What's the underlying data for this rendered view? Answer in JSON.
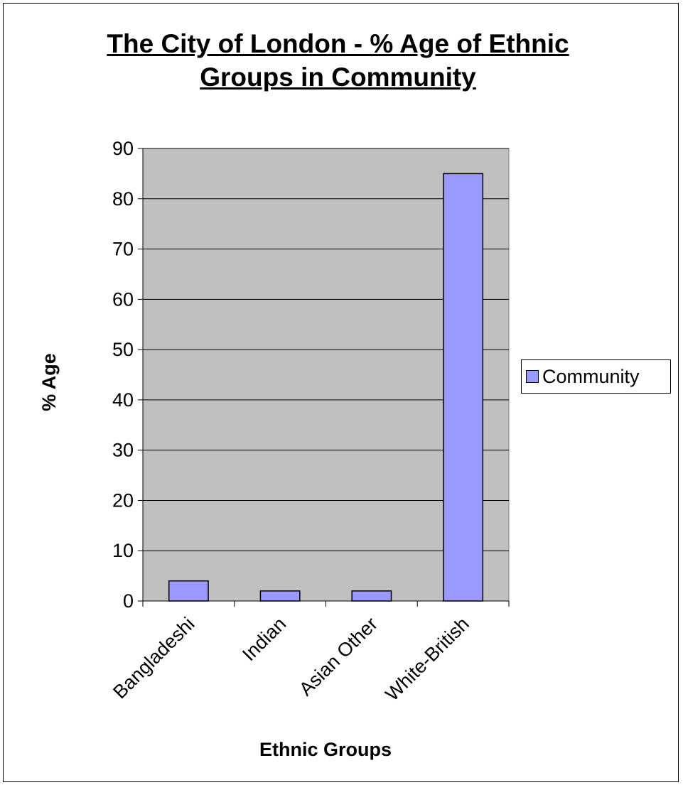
{
  "chart_data": {
    "type": "bar",
    "title_lines": [
      "The City of London - % Age of Ethnic",
      "Groups in Community"
    ],
    "xlabel": "Ethnic Groups",
    "ylabel": "% Age",
    "categories": [
      "Bangladeshi",
      "Indian",
      "Asian Other",
      "White-British"
    ],
    "series": [
      {
        "name": "Community",
        "values": [
          4,
          2,
          2,
          85
        ]
      }
    ],
    "ylim": [
      0,
      90
    ],
    "yticks": [
      "0",
      "10",
      "20",
      "30",
      "40",
      "50",
      "60",
      "70",
      "80",
      "90"
    ],
    "grid": true,
    "legend": "right",
    "colors": {
      "bar": "#9999ff",
      "plot_bg": "#c0c0c0",
      "gridline": "#000000"
    }
  }
}
